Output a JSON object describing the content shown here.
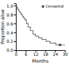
{
  "chart_data": {
    "type": "step",
    "xlabel": "Months",
    "ylabel": "Proportion alive",
    "xlim": [
      0,
      30
    ],
    "ylim": [
      0,
      1.05
    ],
    "xticks": [
      0,
      6,
      12,
      18,
      24,
      30
    ],
    "yticks": [
      {
        "value": 0.0,
        "label": "0.0"
      },
      {
        "value": 0.2,
        "label": "0.2"
      },
      {
        "value": 0.4,
        "label": "0.4"
      },
      {
        "value": 0.6,
        "label": "0.6"
      },
      {
        "value": 0.8,
        "label": "0.8"
      },
      {
        "value": 1.0,
        "label": "1.0"
      }
    ],
    "legend": "upper right",
    "series": [
      {
        "type": "step",
        "color": "#777777",
        "x": [
          0,
          0.5,
          1.0,
          1.8,
          2.5,
          3.2,
          4.0,
          4.8,
          5.5,
          6.5,
          7.5,
          8.9,
          10.5,
          12.0,
          13.8,
          16.0,
          18.5,
          21.0,
          24.5,
          27.0,
          30.0
        ],
        "values": [
          1.0,
          0.96,
          0.92,
          0.88,
          0.84,
          0.8,
          0.76,
          0.72,
          0.68,
          0.6,
          0.52,
          0.44,
          0.36,
          0.32,
          0.28,
          0.24,
          0.2,
          0.16,
          0.12,
          0.12,
          0.12
        ]
      },
      {
        "name": "Censored",
        "type": "scatter",
        "marker": "square",
        "color": "#555555",
        "x": [
          27.0
        ],
        "values": [
          0.12
        ]
      }
    ]
  }
}
